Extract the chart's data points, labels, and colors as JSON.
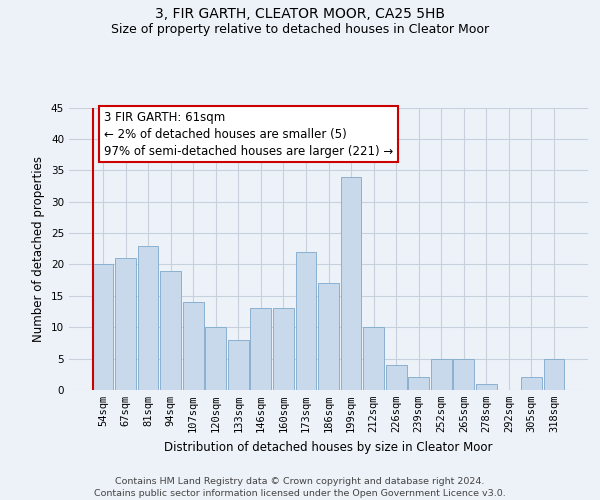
{
  "title1": "3, FIR GARTH, CLEATOR MOOR, CA25 5HB",
  "title2": "Size of property relative to detached houses in Cleator Moor",
  "xlabel": "Distribution of detached houses by size in Cleator Moor",
  "ylabel": "Number of detached properties",
  "categories": [
    "54sqm",
    "67sqm",
    "81sqm",
    "94sqm",
    "107sqm",
    "120sqm",
    "133sqm",
    "146sqm",
    "160sqm",
    "173sqm",
    "186sqm",
    "199sqm",
    "212sqm",
    "226sqm",
    "239sqm",
    "252sqm",
    "265sqm",
    "278sqm",
    "292sqm",
    "305sqm",
    "318sqm"
  ],
  "values": [
    20,
    21,
    23,
    19,
    14,
    10,
    8,
    13,
    13,
    22,
    17,
    34,
    10,
    4,
    2,
    5,
    5,
    1,
    0,
    2,
    5
  ],
  "bar_color": "#c8d9eb",
  "bar_edge_color": "#8ab0d0",
  "red_line_color": "#cc0000",
  "annotation_line1": "3 FIR GARTH: 61sqm",
  "annotation_line2": "← 2% of detached houses are smaller (5)",
  "annotation_line3": "97% of semi-detached houses are larger (221) →",
  "annotation_box_color": "#ffffff",
  "annotation_box_edge": "#cc0000",
  "ylim": [
    0,
    45
  ],
  "yticks": [
    0,
    5,
    10,
    15,
    20,
    25,
    30,
    35,
    40,
    45
  ],
  "footer": "Contains HM Land Registry data © Crown copyright and database right 2024.\nContains public sector information licensed under the Open Government Licence v3.0.",
  "bg_color": "#edf2f9",
  "plot_bg_color": "#edf2f9",
  "grid_color": "#c8d0dc",
  "title1_fontsize": 10,
  "title2_fontsize": 9,
  "xlabel_fontsize": 8.5,
  "ylabel_fontsize": 8.5,
  "tick_fontsize": 7.5,
  "annotation_fontsize": 8.5,
  "footer_fontsize": 6.8
}
